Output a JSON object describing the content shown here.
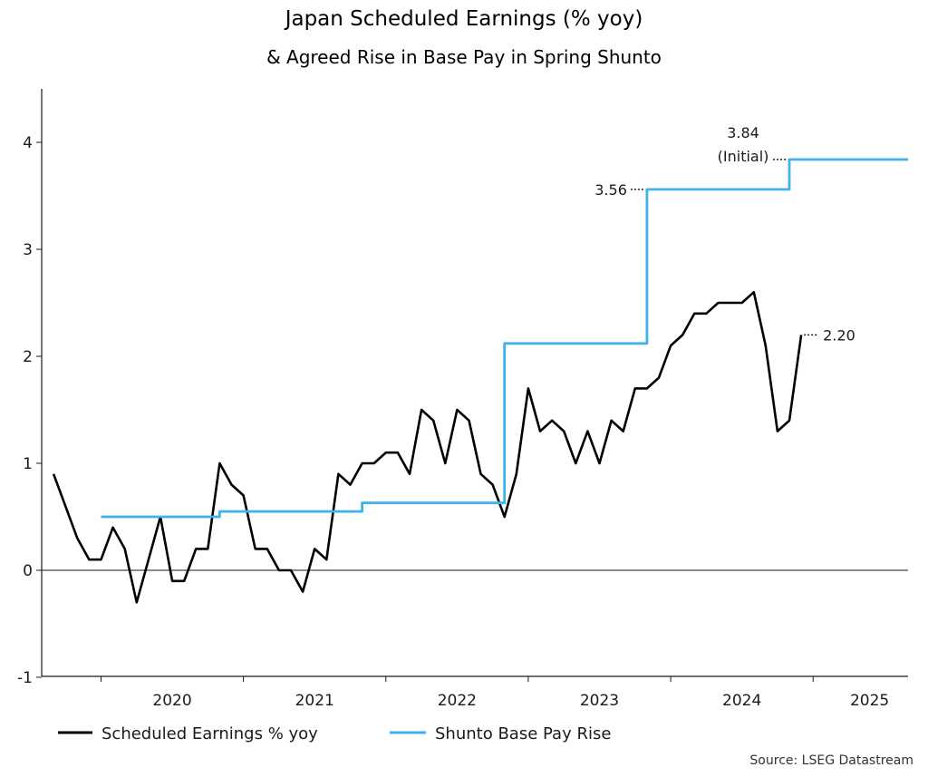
{
  "chart_data": {
    "type": "line",
    "title": "Japan Scheduled Earnings (% yoy)",
    "subtitle": "& Agreed Rise in Base Pay in Spring Shunto",
    "source": "Source: LSEG Datastream",
    "ylim": [
      -1,
      4.5
    ],
    "yticks": [
      "-1",
      "0",
      "1",
      "2",
      "3",
      "4"
    ],
    "xlim": [
      "2019-08",
      "2025-09"
    ],
    "x_tick_labels": [
      "2020",
      "2021",
      "2022",
      "2023",
      "2024",
      "2025"
    ],
    "grid": false,
    "legend_position": "bottom",
    "series": [
      {
        "name": "Scheduled Earnings % yoy",
        "color": "#000000",
        "points": [
          [
            "2019-09",
            0.9
          ],
          [
            "2019-10",
            0.6
          ],
          [
            "2019-11",
            0.3
          ],
          [
            "2019-12",
            0.1
          ],
          [
            "2020-01",
            0.1
          ],
          [
            "2020-02",
            0.4
          ],
          [
            "2020-03",
            0.2
          ],
          [
            "2020-04",
            -0.3
          ],
          [
            "2020-05",
            0.1
          ],
          [
            "2020-06",
            0.5
          ],
          [
            "2020-07",
            -0.1
          ],
          [
            "2020-08",
            -0.1
          ],
          [
            "2020-09",
            0.2
          ],
          [
            "2020-10",
            0.2
          ],
          [
            "2020-11",
            1.0
          ],
          [
            "2020-12",
            0.8
          ],
          [
            "2021-01",
            0.7
          ],
          [
            "2021-02",
            0.2
          ],
          [
            "2021-03",
            0.2
          ],
          [
            "2021-04",
            0.0
          ],
          [
            "2021-05",
            0.0
          ],
          [
            "2021-06",
            -0.2
          ],
          [
            "2021-07",
            0.2
          ],
          [
            "2021-08",
            0.1
          ],
          [
            "2021-09",
            0.9
          ],
          [
            "2021-10",
            0.8
          ],
          [
            "2021-11",
            1.0
          ],
          [
            "2021-12",
            1.0
          ],
          [
            "2022-01",
            1.1
          ],
          [
            "2022-02",
            1.1
          ],
          [
            "2022-03",
            0.9
          ],
          [
            "2022-04",
            1.5
          ],
          [
            "2022-05",
            1.4
          ],
          [
            "2022-06",
            1.0
          ],
          [
            "2022-07",
            1.5
          ],
          [
            "2022-08",
            1.4
          ],
          [
            "2022-09",
            0.9
          ],
          [
            "2022-10",
            0.8
          ],
          [
            "2022-11",
            0.5
          ],
          [
            "2022-12",
            0.9
          ],
          [
            "2023-01",
            1.7
          ],
          [
            "2023-02",
            1.3
          ],
          [
            "2023-03",
            1.4
          ],
          [
            "2023-04",
            1.3
          ],
          [
            "2023-05",
            1.0
          ],
          [
            "2023-06",
            1.3
          ],
          [
            "2023-07",
            1.0
          ],
          [
            "2023-08",
            1.4
          ],
          [
            "2023-09",
            1.3
          ],
          [
            "2023-10",
            1.7
          ],
          [
            "2023-11",
            1.7
          ],
          [
            "2023-12",
            1.8
          ],
          [
            "2024-01",
            2.1
          ],
          [
            "2024-02",
            2.2
          ],
          [
            "2024-03",
            2.4
          ],
          [
            "2024-04",
            2.4
          ],
          [
            "2024-05",
            2.5
          ],
          [
            "2024-06",
            2.5
          ],
          [
            "2024-07",
            2.5
          ],
          [
            "2024-08",
            2.6
          ],
          [
            "2024-09",
            2.1
          ],
          [
            "2024-10",
            1.3
          ],
          [
            "2024-11",
            1.4
          ],
          [
            "2024-12",
            2.2
          ]
        ]
      },
      {
        "name": "Shunto Base Pay Rise",
        "color": "#3fb1ec",
        "points": [
          [
            "2020-01",
            0.5
          ],
          [
            "2020-11",
            0.5
          ],
          [
            "2020-11",
            0.55
          ],
          [
            "2021-11",
            0.55
          ],
          [
            "2021-11",
            0.63
          ],
          [
            "2022-11",
            0.63
          ],
          [
            "2022-11",
            2.12
          ],
          [
            "2023-11",
            2.12
          ],
          [
            "2023-11",
            3.56
          ],
          [
            "2024-11",
            3.56
          ],
          [
            "2024-11",
            3.84
          ],
          [
            "2025-09",
            3.84
          ]
        ]
      }
    ],
    "annotations": [
      {
        "id": "shunto-2023",
        "lines": [
          "3.56"
        ],
        "x": "2023-11",
        "y": 3.56,
        "series": "Shunto Base Pay Rise"
      },
      {
        "id": "shunto-2024",
        "lines": [
          "3.84",
          "(Initial)"
        ],
        "x": "2024-11",
        "y": 3.84,
        "series": "Shunto Base Pay Rise"
      },
      {
        "id": "earnings-last",
        "lines": [
          "2.20"
        ],
        "x": "2024-12",
        "y": 2.2,
        "series": "Scheduled Earnings % yoy"
      }
    ]
  }
}
